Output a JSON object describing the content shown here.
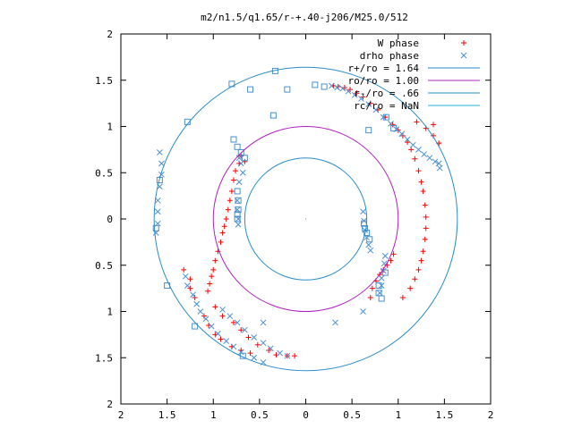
{
  "chart_data": {
    "type": "scatter",
    "title": "m2/n1.5/q1.65/r-+.40-j206/M25.0/512",
    "xlim": [
      -2,
      2
    ],
    "ylim": [
      -2,
      2
    ],
    "x_ticks": [
      {
        "value": -2,
        "label": "2"
      },
      {
        "value": -1.5,
        "label": "1.5"
      },
      {
        "value": -1,
        "label": "1"
      },
      {
        "value": -0.5,
        "label": "0.5"
      },
      {
        "value": 0,
        "label": "0"
      },
      {
        "value": 0.5,
        "label": "0.5"
      },
      {
        "value": 1,
        "label": "1"
      },
      {
        "value": 1.5,
        "label": "1.5"
      },
      {
        "value": 2,
        "label": "2"
      }
    ],
    "y_ticks": [
      {
        "value": 2,
        "label": "2"
      },
      {
        "value": 1.5,
        "label": "1.5"
      },
      {
        "value": 1,
        "label": "1"
      },
      {
        "value": 0.5,
        "label": "0.5"
      },
      {
        "value": 0,
        "label": "0"
      },
      {
        "value": -0.5,
        "label": "0.5"
      },
      {
        "value": -1,
        "label": "1"
      },
      {
        "value": -1.5,
        "label": "1.5"
      },
      {
        "value": -2,
        "label": "2"
      }
    ],
    "grid": false,
    "legend_position": "top-right",
    "series": [
      {
        "name": "W phase",
        "kind": "points",
        "marker": "plus",
        "color": "#ff0000",
        "points": [
          [
            0.3,
            1.44
          ],
          [
            0.35,
            1.43
          ],
          [
            0.42,
            1.42
          ],
          [
            0.48,
            1.4
          ],
          [
            0.55,
            1.36
          ],
          [
            0.62,
            1.32
          ],
          [
            0.7,
            1.25
          ],
          [
            0.78,
            1.18
          ],
          [
            0.86,
            1.1
          ],
          [
            0.94,
            1.02
          ],
          [
            1.0,
            0.96
          ],
          [
            1.05,
            0.9
          ],
          [
            1.1,
            0.83
          ],
          [
            1.14,
            0.75
          ],
          [
            1.18,
            0.65
          ],
          [
            1.22,
            0.52
          ],
          [
            1.25,
            0.4
          ],
          [
            1.27,
            0.3
          ],
          [
            1.29,
            0.15
          ],
          [
            1.3,
            0.02
          ],
          [
            1.3,
            -0.1
          ],
          [
            1.29,
            -0.22
          ],
          [
            1.27,
            -0.35
          ],
          [
            1.25,
            -0.45
          ],
          [
            1.22,
            -0.55
          ],
          [
            1.18,
            -0.65
          ],
          [
            1.13,
            -0.75
          ],
          [
            1.05,
            -0.85
          ],
          [
            1.2,
            1.05
          ],
          [
            1.3,
            0.98
          ],
          [
            1.38,
            0.9
          ],
          [
            1.44,
            0.82
          ],
          [
            1.38,
            1.02
          ],
          [
            0.95,
            -0.38
          ],
          [
            0.92,
            -0.45
          ],
          [
            0.88,
            -0.5
          ],
          [
            0.84,
            -0.55
          ],
          [
            0.8,
            -0.6
          ],
          [
            0.76,
            -0.67
          ],
          [
            0.72,
            -0.75
          ],
          [
            0.7,
            -0.85
          ],
          [
            -0.72,
            0.6
          ],
          [
            -0.76,
            0.52
          ],
          [
            -0.78,
            0.42
          ],
          [
            -0.8,
            0.3
          ],
          [
            -0.82,
            0.2
          ],
          [
            -0.84,
            0.1
          ],
          [
            -0.86,
            0.0
          ],
          [
            -0.88,
            -0.08
          ],
          [
            -0.9,
            -0.15
          ],
          [
            -0.92,
            -0.25
          ],
          [
            -0.95,
            -0.35
          ],
          [
            -0.98,
            -0.45
          ],
          [
            -1.0,
            -0.55
          ],
          [
            -1.02,
            -0.62
          ],
          [
            -1.04,
            -0.7
          ],
          [
            -1.06,
            -0.78
          ],
          [
            -0.98,
            -0.95
          ],
          [
            -0.9,
            -1.05
          ],
          [
            -0.78,
            -1.12
          ],
          [
            -0.7,
            -1.2
          ],
          [
            -0.62,
            -1.28
          ],
          [
            -0.52,
            -1.36
          ],
          [
            -0.4,
            -1.42
          ],
          [
            -0.32,
            -1.47
          ],
          [
            -0.2,
            -1.48
          ],
          [
            -0.12,
            -1.48
          ],
          [
            -0.7,
            0.68
          ],
          [
            -0.66,
            0.62
          ],
          [
            -1.1,
            -1.05
          ],
          [
            -1.05,
            -1.15
          ],
          [
            -0.98,
            -1.25
          ],
          [
            -0.92,
            -1.3
          ],
          [
            -0.8,
            -1.38
          ],
          [
            -0.7,
            -1.42
          ],
          [
            -0.6,
            -1.45
          ],
          [
            -1.32,
            -0.55
          ],
          [
            -1.25,
            -0.65
          ],
          [
            -1.25,
            -0.75
          ],
          [
            -1.2,
            -0.85
          ]
        ]
      },
      {
        "name": "drho phase",
        "kind": "points",
        "marker": "cross",
        "color": "#4a8fd0",
        "points": [
          [
            0.28,
            1.44
          ],
          [
            0.34,
            1.42
          ],
          [
            0.4,
            1.41
          ],
          [
            0.46,
            1.38
          ],
          [
            0.53,
            1.34
          ],
          [
            0.6,
            1.3
          ],
          [
            0.68,
            1.24
          ],
          [
            0.76,
            1.18
          ],
          [
            0.84,
            1.1
          ],
          [
            0.92,
            1.03
          ],
          [
            0.98,
            0.97
          ],
          [
            1.04,
            0.92
          ],
          [
            1.1,
            0.86
          ],
          [
            1.16,
            0.8
          ],
          [
            1.22,
            0.75
          ],
          [
            1.28,
            0.7
          ],
          [
            1.34,
            0.66
          ],
          [
            1.4,
            0.62
          ],
          [
            1.44,
            0.6
          ],
          [
            1.45,
            0.55
          ],
          [
            0.62,
            0.08
          ],
          [
            0.63,
            -0.02
          ],
          [
            0.64,
            -0.12
          ],
          [
            0.66,
            -0.2
          ],
          [
            0.68,
            -0.28
          ],
          [
            0.7,
            -0.34
          ],
          [
            0.86,
            -0.4
          ],
          [
            0.85,
            -0.48
          ],
          [
            0.84,
            -0.56
          ],
          [
            0.82,
            -0.64
          ],
          [
            0.82,
            -0.72
          ],
          [
            0.8,
            -0.8
          ],
          [
            0.62,
            -1.0
          ],
          [
            0.32,
            -1.12
          ],
          [
            -0.72,
            0.66
          ],
          [
            -0.7,
            0.6
          ],
          [
            -0.68,
            0.5
          ],
          [
            -0.72,
            0.4
          ],
          [
            -0.74,
            0.2
          ],
          [
            -0.74,
            0.1
          ],
          [
            -0.73,
            0.0
          ],
          [
            -0.73,
            -0.06
          ],
          [
            -0.9,
            -0.98
          ],
          [
            -0.82,
            -1.05
          ],
          [
            -0.74,
            -1.12
          ],
          [
            -0.66,
            -1.2
          ],
          [
            -0.56,
            -1.28
          ],
          [
            -0.46,
            -1.34
          ],
          [
            -0.38,
            -1.4
          ],
          [
            -0.28,
            -1.45
          ],
          [
            -0.2,
            -1.48
          ],
          [
            -0.46,
            -1.12
          ],
          [
            -1.58,
            0.72
          ],
          [
            -1.56,
            0.6
          ],
          [
            -1.56,
            0.48
          ],
          [
            -1.58,
            0.35
          ],
          [
            -1.6,
            0.2
          ],
          [
            -1.6,
            0.08
          ],
          [
            -1.6,
            -0.05
          ],
          [
            -1.62,
            -0.15
          ],
          [
            -1.3,
            -0.62
          ],
          [
            -1.28,
            -0.72
          ],
          [
            -1.22,
            -0.82
          ],
          [
            -1.18,
            -0.92
          ],
          [
            -1.14,
            -1.0
          ],
          [
            -1.08,
            -1.08
          ],
          [
            -1.02,
            -1.16
          ],
          [
            -0.95,
            -1.24
          ],
          [
            -0.86,
            -1.32
          ],
          [
            -0.78,
            -1.38
          ],
          [
            -0.7,
            -1.44
          ],
          [
            -0.56,
            -1.5
          ],
          [
            -0.46,
            -1.55
          ]
        ]
      },
      {
        "name": "",
        "kind": "points",
        "marker": "square",
        "color": "#4a8fd0",
        "points": [
          [
            -0.33,
            1.6
          ],
          [
            -0.8,
            1.46
          ],
          [
            -1.28,
            1.05
          ],
          [
            -1.58,
            0.42
          ],
          [
            -1.62,
            -0.1
          ],
          [
            -1.5,
            -0.72
          ],
          [
            -1.2,
            -1.16
          ],
          [
            -0.68,
            -1.48
          ],
          [
            -0.35,
            1.12
          ],
          [
            0.68,
            0.96
          ],
          [
            0.87,
            1.1
          ],
          [
            0.95,
            0.98
          ],
          [
            -0.78,
            0.86
          ],
          [
            -0.74,
            0.78
          ],
          [
            -0.7,
            0.72
          ],
          [
            -0.66,
            0.66
          ],
          [
            -0.74,
            0.3
          ],
          [
            -0.73,
            0.2
          ],
          [
            -0.73,
            0.1
          ],
          [
            -0.74,
            0.05
          ],
          [
            -0.74,
            0.0
          ],
          [
            0.63,
            -0.05
          ],
          [
            0.64,
            -0.1
          ],
          [
            0.66,
            -0.15
          ],
          [
            0.69,
            -0.22
          ],
          [
            0.79,
            -0.72
          ],
          [
            0.79,
            -0.8
          ],
          [
            0.82,
            -0.86
          ],
          [
            0.86,
            -0.58
          ],
          [
            -0.6,
            1.4
          ],
          [
            0.1,
            1.45
          ],
          [
            0.2,
            1.43
          ],
          [
            -0.2,
            1.4
          ]
        ]
      },
      {
        "name": "r+/ro = 1.64",
        "kind": "circle",
        "radius": 1.64,
        "color": "#2a8cc8"
      },
      {
        "name": "ro/ro = 1.00",
        "kind": "circle",
        "radius": 1.0,
        "color": "#b020c0"
      },
      {
        "name": "r-/ro = .66",
        "kind": "circle",
        "radius": 0.66,
        "color": "#2a8cc8"
      },
      {
        "name": "rc/ro = NaN",
        "kind": "circle",
        "radius": null,
        "color": "#20b0d8"
      }
    ]
  }
}
